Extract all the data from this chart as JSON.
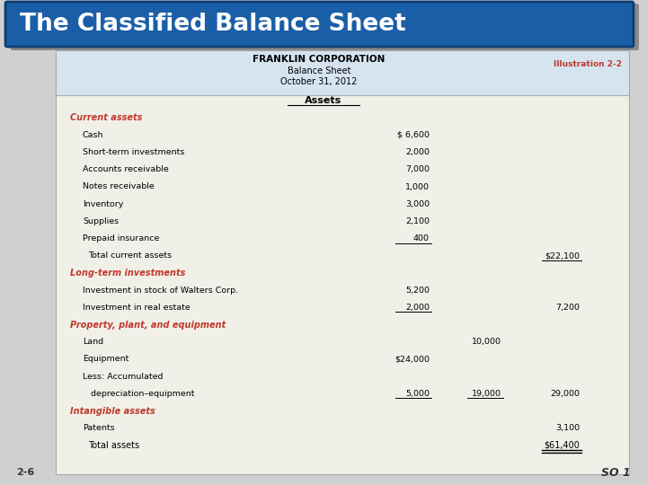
{
  "title": "The Classified Balance Sheet",
  "title_bg": "#1a5ea8",
  "title_color": "#ffffff",
  "company": "FRANKLIN CORPORATION",
  "subtitle1": "Balance Sheet",
  "subtitle2": "October 31, 2012",
  "illustration": "Illustration 2-2",
  "illustration_color": "#c0392b",
  "header_bg": "#d6e4f0",
  "body_bg": "#f0f0e8",
  "section_color": "#c0392b",
  "rows": [
    {
      "type": "section_header",
      "label": "Assets",
      "indent": 0
    },
    {
      "type": "category",
      "label": "Current assets",
      "indent": 0
    },
    {
      "type": "item",
      "label": "Cash",
      "indent": 1,
      "col2": "$ 6,600",
      "col3": "",
      "col4": ""
    },
    {
      "type": "item",
      "label": "Short-term investments",
      "indent": 1,
      "col2": "2,000",
      "col3": "",
      "col4": ""
    },
    {
      "type": "item",
      "label": "Accounts receivable",
      "indent": 1,
      "col2": "7,000",
      "col3": "",
      "col4": ""
    },
    {
      "type": "item",
      "label": "Notes receivable",
      "indent": 1,
      "col2": "1,000",
      "col3": "",
      "col4": ""
    },
    {
      "type": "item",
      "label": "Inventory",
      "indent": 1,
      "col2": "3,000",
      "col3": "",
      "col4": ""
    },
    {
      "type": "item",
      "label": "Supplies",
      "indent": 1,
      "col2": "2,100",
      "col3": "",
      "col4": ""
    },
    {
      "type": "item_underline",
      "label": "Prepaid insurance",
      "indent": 1,
      "col2": "400",
      "col3": "",
      "col4": ""
    },
    {
      "type": "total",
      "label": "Total current assets",
      "indent": 1,
      "col2": "",
      "col3": "",
      "col4": "$22,100"
    },
    {
      "type": "category",
      "label": "Long-term investments",
      "indent": 0
    },
    {
      "type": "item",
      "label": "Investment in stock of Walters Corp.",
      "indent": 1,
      "col2": "5,200",
      "col3": "",
      "col4": ""
    },
    {
      "type": "item_underline",
      "label": "Investment in real estate",
      "indent": 1,
      "col2": "2,000",
      "col3": "",
      "col4": "7,200"
    },
    {
      "type": "category",
      "label": "Property, plant, and equipment",
      "indent": 0
    },
    {
      "type": "item",
      "label": "Land",
      "indent": 1,
      "col2": "",
      "col3": "10,000",
      "col4": ""
    },
    {
      "type": "item",
      "label": "Equipment",
      "indent": 1,
      "col2": "$24,000",
      "col3": "",
      "col4": ""
    },
    {
      "type": "item",
      "label": "Less: Accumulated",
      "indent": 1,
      "col2": "",
      "col3": "",
      "col4": ""
    },
    {
      "type": "item_underline",
      "label": "   depreciation–equipment",
      "indent": 1,
      "col2": "5,000",
      "col3": "19,000",
      "col4": "29,000"
    },
    {
      "type": "category",
      "label": "Intangible assets",
      "indent": 0
    },
    {
      "type": "item",
      "label": "Patents",
      "indent": 1,
      "col2": "",
      "col3": "",
      "col4": "3,100"
    },
    {
      "type": "total_final",
      "label": "Total assets",
      "indent": 1,
      "col2": "",
      "col3": "",
      "col4": "$61,400"
    }
  ],
  "bottom_left": "2-6",
  "bottom_right": "SO 1"
}
